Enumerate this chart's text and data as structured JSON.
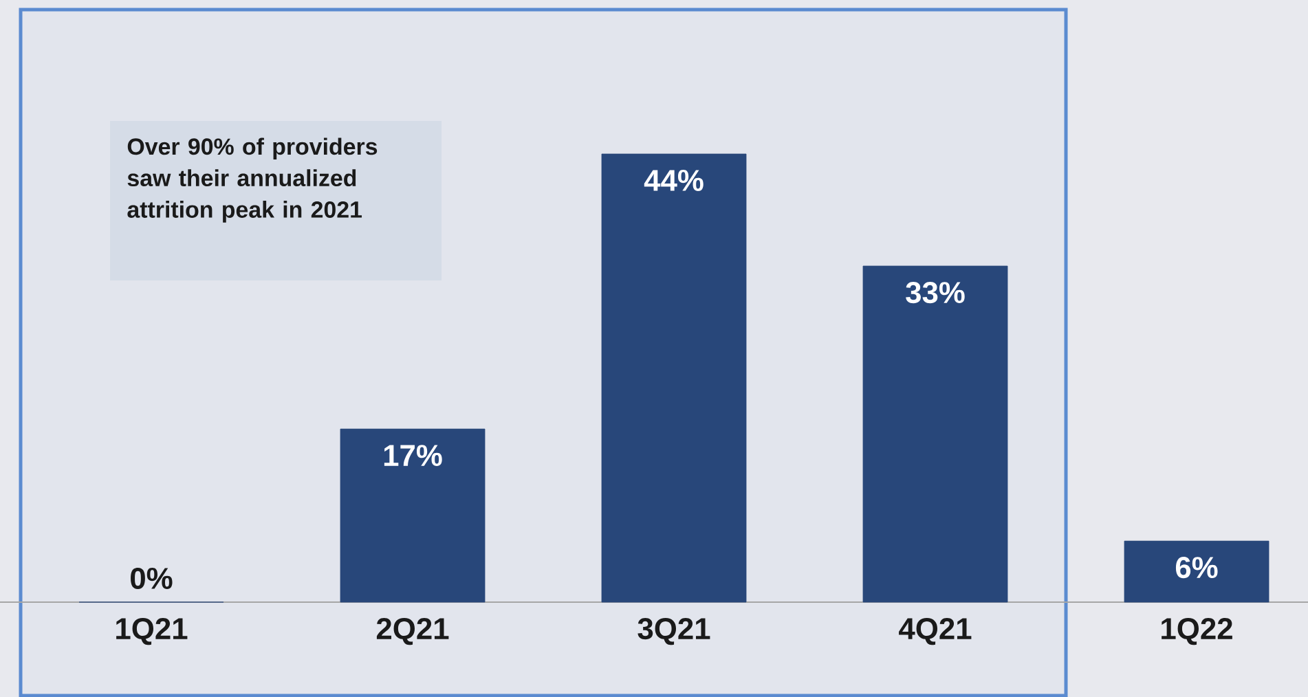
{
  "chart_data": {
    "type": "bar",
    "categories": [
      "1Q21",
      "2Q21",
      "3Q21",
      "4Q21",
      "1Q22"
    ],
    "values": [
      0,
      17,
      44,
      33,
      6
    ],
    "color": "#28477a",
    "data_labels": true,
    "value_labels": [
      "0%",
      "17%",
      "44%",
      "33%",
      "6%"
    ],
    "tick_labels": "x",
    "annotations": [
      "Over 90% of providers saw their annualized attrition peak in 2021"
    ],
    "bands": [
      {
        "axis": "x",
        "from": "1Q21",
        "to": "4Q21",
        "color": "#5b8bd0"
      }
    ]
  }
}
